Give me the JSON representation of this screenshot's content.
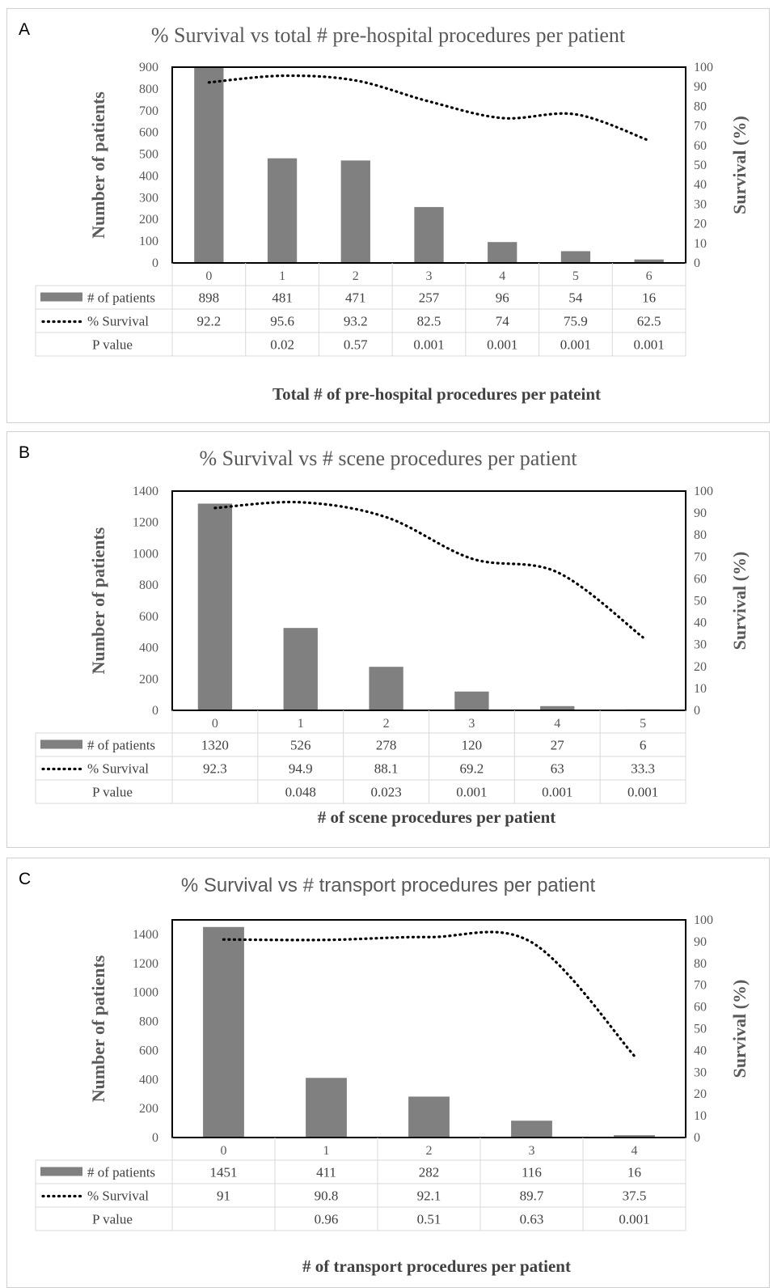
{
  "colors": {
    "bar": "#808080",
    "line": "#000000",
    "grid": "#d9d9d9",
    "frame": "#000000"
  },
  "panels": [
    {
      "letter": "A",
      "title": "% Survival vs total # pre-hospital procedures per patient",
      "xlabel": "Total # of pre-hospital procedures per pateint",
      "chart_data": {
        "type": "bar",
        "categories": [
          "0",
          "1",
          "2",
          "3",
          "4",
          "5",
          "6"
        ],
        "series": [
          {
            "name": "# of patients",
            "type": "bar",
            "values": [
              898,
              481,
              471,
              257,
              96,
              54,
              16
            ]
          },
          {
            "name": "% Survival",
            "type": "line",
            "values": [
              92.2,
              95.6,
              93.2,
              82.5,
              74,
              75.9,
              62.5
            ]
          }
        ],
        "p_values_label": "P value",
        "p_values": [
          "",
          "0.02",
          "0.57",
          "0.001",
          "0.001",
          "0.001",
          "0.001"
        ],
        "ylabel": "Number of patients",
        "y2label": "Survival (%)",
        "ylim": [
          0,
          900
        ],
        "yticks": [
          0,
          100,
          200,
          300,
          400,
          500,
          600,
          700,
          800,
          900
        ],
        "y2lim": [
          0,
          100
        ],
        "y2ticks": [
          0,
          10,
          20,
          30,
          40,
          50,
          60,
          70,
          80,
          90,
          100
        ]
      }
    },
    {
      "letter": "B",
      "title": "% Survival vs # scene procedures per patient",
      "xlabel": "# of scene procedures per patient",
      "chart_data": {
        "type": "bar",
        "categories": [
          "0",
          "1",
          "2",
          "3",
          "4",
          "5"
        ],
        "series": [
          {
            "name": "# of patients",
            "type": "bar",
            "values": [
              1320,
              526,
              278,
              120,
              27,
              6
            ]
          },
          {
            "name": "% Survival",
            "type": "line",
            "values": [
              92.3,
              94.9,
              88.1,
              69.2,
              63,
              33.3
            ]
          }
        ],
        "p_values_label": "P value",
        "p_values": [
          "",
          "0.048",
          "0.023",
          "0.001",
          "0.001",
          "0.001"
        ],
        "ylabel": "Number of patients",
        "y2label": "Survival (%)",
        "ylim": [
          0,
          1400
        ],
        "yticks": [
          0,
          200,
          400,
          600,
          800,
          1000,
          1200,
          1400
        ],
        "y2lim": [
          0,
          100
        ],
        "y2ticks": [
          0,
          10,
          20,
          30,
          40,
          50,
          60,
          70,
          80,
          90,
          100
        ]
      }
    },
    {
      "letter": "C",
      "title": "% Survival vs # transport procedures per patient",
      "xlabel": "# of transport procedures per patient",
      "chart_data": {
        "type": "bar",
        "categories": [
          "0",
          "1",
          "2",
          "3",
          "4"
        ],
        "series": [
          {
            "name": "# of patients",
            "type": "bar",
            "values": [
              1451,
              411,
              282,
              116,
              16
            ]
          },
          {
            "name": "% Survival",
            "type": "line",
            "values": [
              91,
              90.8,
              92.1,
              89.7,
              37.5
            ]
          }
        ],
        "p_values_label": "P value",
        "p_values": [
          "",
          "0.96",
          "0.51",
          "0.63",
          "0.001"
        ],
        "ylabel": "Number of patients",
        "y2label": "Survival (%)",
        "ylim": [
          0,
          1500
        ],
        "yticks": [
          0,
          200,
          400,
          600,
          800,
          1000,
          1200,
          1400
        ],
        "y2lim": [
          0,
          100
        ],
        "y2ticks": [
          0,
          10,
          20,
          30,
          40,
          50,
          60,
          70,
          80,
          90,
          100
        ]
      }
    }
  ]
}
